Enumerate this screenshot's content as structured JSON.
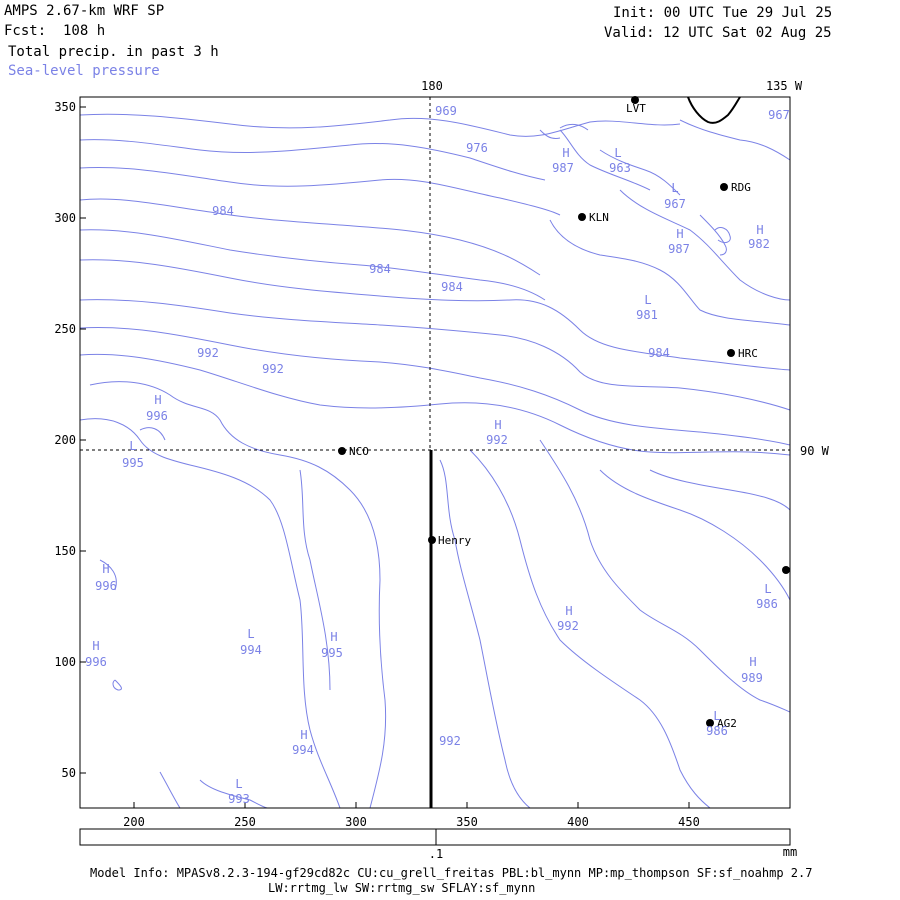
{
  "header": {
    "title": "AMPS 2.67-km WRF SP",
    "fcst": "Fcst:  108 h",
    "init": "Init: 00 UTC Tue 29 Jul 25",
    "valid": "Valid: 12 UTC Sat 02 Aug 25",
    "field1": "Total precip. in past 3 h",
    "field2": "Sea-level pressure"
  },
  "colors": {
    "contour": "#7b82e6",
    "frame": "#000000",
    "background": "#ffffff"
  },
  "axes": {
    "x_ticks": [
      "200",
      "250",
      "300",
      "350",
      "400",
      "450"
    ],
    "y_ticks": [
      "350",
      "300",
      "250",
      "200",
      "150",
      "100",
      "50"
    ],
    "longitude_labels": {
      "top_180": "180",
      "top_135w": "135 W",
      "right_90w": "90 W"
    }
  },
  "stations": [
    "LVT",
    "RDG",
    "KLN",
    "HRC",
    "NCO",
    "Henry",
    "AG2"
  ],
  "pressure_centers": [
    {
      "type": "H",
      "value": "987"
    },
    {
      "type": "L",
      "value": "963"
    },
    {
      "type": "L",
      "value": "967"
    },
    {
      "type": "H",
      "value": "987"
    },
    {
      "type": "H",
      "value": "982"
    },
    {
      "type": "L",
      "value": "981"
    },
    {
      "type": "H",
      "value": "996"
    },
    {
      "type": "L",
      "value": "995"
    },
    {
      "type": "H",
      "value": "992"
    },
    {
      "type": "H",
      "value": "996"
    },
    {
      "type": "H",
      "value": "996"
    },
    {
      "type": "L",
      "value": "994"
    },
    {
      "type": "H",
      "value": "995"
    },
    {
      "type": "H",
      "value": "994"
    },
    {
      "type": "L",
      "value": "993"
    },
    {
      "type": "H",
      "value": "992"
    },
    {
      "type": "L",
      "value": "986"
    },
    {
      "type": "H",
      "value": "989"
    },
    {
      "type": "L",
      "value": "986"
    }
  ],
  "contour_labels": [
    "969",
    "976",
    "967",
    "984",
    "984",
    "984",
    "984",
    "992",
    "992",
    "992"
  ],
  "colorbar": {
    "tick_label": ".1",
    "unit": "mm"
  },
  "footer": {
    "line1": "Model Info: MPASv8.2.3-194-gf29cd82c CU:cu_grell_freitas PBL:bl_mynn MP:mp_thompson SF:sf_noahmp 2.7",
    "line2": "LW:rrtmg_lw SW:rrtmg_sw SFLAY:sf_mynn"
  }
}
